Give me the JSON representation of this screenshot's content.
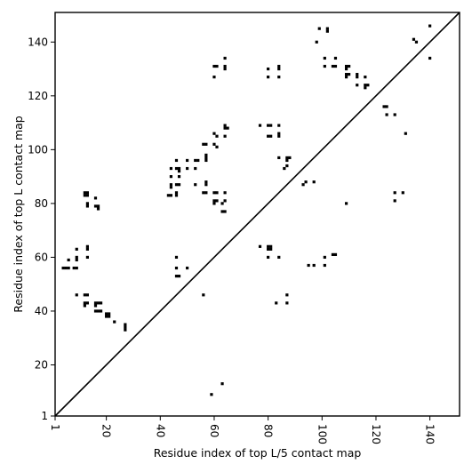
{
  "chart_data": {
    "type": "scatter",
    "title": "",
    "xlabel": "Residue index of top L/5 contact map",
    "ylabel": "Residue index of top L contact map",
    "xlim": [
      1,
      151
    ],
    "ylim": [
      1,
      151
    ],
    "x_ticks": [
      1,
      20,
      40,
      60,
      80,
      100,
      120,
      140
    ],
    "y_ticks": [
      1,
      20,
      40,
      60,
      80,
      100,
      120,
      140
    ],
    "x_tick_labels": [
      "1",
      "20",
      "40",
      "60",
      "80",
      "100",
      "120",
      "140"
    ],
    "y_tick_labels": [
      "1",
      "20",
      "40",
      "60",
      "80",
      "100",
      "120",
      "140"
    ],
    "grid": false,
    "marker": "square",
    "color": "#000000",
    "diagonal": [
      [
        1,
        1
      ],
      [
        151,
        151
      ]
    ],
    "series": [
      {
        "points": [
          [
            140,
            146
          ],
          [
            140,
            134
          ],
          [
            134,
            141
          ],
          [
            135,
            140
          ],
          [
            102,
            145
          ],
          [
            102,
            144
          ],
          [
            99,
            145
          ],
          [
            98,
            140
          ],
          [
            101,
            134
          ],
          [
            105,
            134
          ],
          [
            101,
            131
          ],
          [
            104,
            131
          ],
          [
            105,
            131
          ],
          [
            109,
            131
          ],
          [
            110,
            131
          ],
          [
            109,
            130
          ],
          [
            109,
            128
          ],
          [
            110,
            128
          ],
          [
            109,
            127
          ],
          [
            113,
            128
          ],
          [
            113,
            127
          ],
          [
            116,
            127
          ],
          [
            113,
            124
          ],
          [
            116,
            124
          ],
          [
            116,
            123
          ],
          [
            117,
            124
          ],
          [
            123,
            116
          ],
          [
            124,
            116
          ],
          [
            124,
            113
          ],
          [
            127,
            113
          ],
          [
            131,
            106
          ],
          [
            60,
            131
          ],
          [
            61,
            131
          ],
          [
            64,
            131
          ],
          [
            64,
            130
          ],
          [
            64,
            134
          ],
          [
            60,
            127
          ],
          [
            80,
            130
          ],
          [
            80,
            127
          ],
          [
            84,
            131
          ],
          [
            84,
            130
          ],
          [
            84,
            127
          ],
          [
            77,
            109
          ],
          [
            80,
            109
          ],
          [
            81,
            109
          ],
          [
            84,
            109
          ],
          [
            80,
            105
          ],
          [
            81,
            105
          ],
          [
            84,
            106
          ],
          [
            84,
            105
          ],
          [
            60,
            106
          ],
          [
            61,
            105
          ],
          [
            60,
            102
          ],
          [
            61,
            101
          ],
          [
            56,
            102
          ],
          [
            57,
            102
          ],
          [
            57,
            98
          ],
          [
            57,
            97
          ],
          [
            57,
            96
          ],
          [
            64,
            109
          ],
          [
            64,
            108
          ],
          [
            65,
            108
          ],
          [
            64,
            105
          ],
          [
            44,
            93
          ],
          [
            46,
            93
          ],
          [
            47,
            93
          ],
          [
            47,
            92
          ],
          [
            50,
            93
          ],
          [
            53,
            93
          ],
          [
            46,
            96
          ],
          [
            50,
            96
          ],
          [
            53,
            96
          ],
          [
            54,
            96
          ],
          [
            44,
            90
          ],
          [
            47,
            90
          ],
          [
            44,
            87
          ],
          [
            47,
            87
          ],
          [
            46,
            87
          ],
          [
            44,
            86
          ],
          [
            46,
            84
          ],
          [
            46,
            83
          ],
          [
            43,
            83
          ],
          [
            44,
            83
          ],
          [
            53,
            87
          ],
          [
            56,
            84
          ],
          [
            57,
            84
          ],
          [
            57,
            88
          ],
          [
            57,
            87
          ],
          [
            60,
            84
          ],
          [
            61,
            84
          ],
          [
            64,
            84
          ],
          [
            60,
            81
          ],
          [
            61,
            81
          ],
          [
            60,
            80
          ],
          [
            64,
            81
          ],
          [
            63,
            80
          ],
          [
            63,
            77
          ],
          [
            64,
            77
          ],
          [
            84,
            97
          ],
          [
            87,
            97
          ],
          [
            88,
            97
          ],
          [
            87,
            96
          ],
          [
            87,
            94
          ],
          [
            86,
            93
          ],
          [
            93,
            87
          ],
          [
            94,
            88
          ],
          [
            97,
            88
          ],
          [
            109,
            80
          ],
          [
            127,
            84
          ],
          [
            130,
            84
          ],
          [
            127,
            81
          ],
          [
            12,
            84
          ],
          [
            13,
            84
          ],
          [
            12,
            83
          ],
          [
            13,
            83
          ],
          [
            13,
            80
          ],
          [
            13,
            79
          ],
          [
            16,
            82
          ],
          [
            16,
            79
          ],
          [
            17,
            79
          ],
          [
            17,
            78
          ],
          [
            77,
            64
          ],
          [
            80,
            64
          ],
          [
            81,
            64
          ],
          [
            80,
            63
          ],
          [
            81,
            63
          ],
          [
            80,
            60
          ],
          [
            84,
            60
          ],
          [
            83,
            43
          ],
          [
            87,
            46
          ],
          [
            87,
            43
          ],
          [
            97,
            57
          ],
          [
            95,
            57
          ],
          [
            101,
            57
          ],
          [
            101,
            60
          ],
          [
            104,
            61
          ],
          [
            105,
            61
          ],
          [
            46,
            60
          ],
          [
            46,
            56
          ],
          [
            50,
            56
          ],
          [
            46,
            53
          ],
          [
            47,
            53
          ],
          [
            56,
            46
          ],
          [
            59,
            9
          ],
          [
            63,
            13
          ],
          [
            4,
            56
          ],
          [
            5,
            56
          ],
          [
            6,
            56
          ],
          [
            8,
            56
          ],
          [
            9,
            56
          ],
          [
            6,
            59
          ],
          [
            9,
            60
          ],
          [
            9,
            59
          ],
          [
            9,
            63
          ],
          [
            13,
            64
          ],
          [
            13,
            63
          ],
          [
            13,
            60
          ],
          [
            9,
            46
          ],
          [
            12,
            46
          ],
          [
            13,
            46
          ],
          [
            12,
            43
          ],
          [
            12,
            42
          ],
          [
            13,
            43
          ],
          [
            16,
            43
          ],
          [
            17,
            43
          ],
          [
            18,
            43
          ],
          [
            16,
            42
          ],
          [
            16,
            40
          ],
          [
            17,
            40
          ],
          [
            18,
            40
          ],
          [
            20,
            39
          ],
          [
            21,
            39
          ],
          [
            20,
            38
          ],
          [
            21,
            38
          ],
          [
            23,
            36
          ],
          [
            27,
            35
          ],
          [
            27,
            34
          ],
          [
            27,
            33
          ]
        ]
      }
    ]
  }
}
